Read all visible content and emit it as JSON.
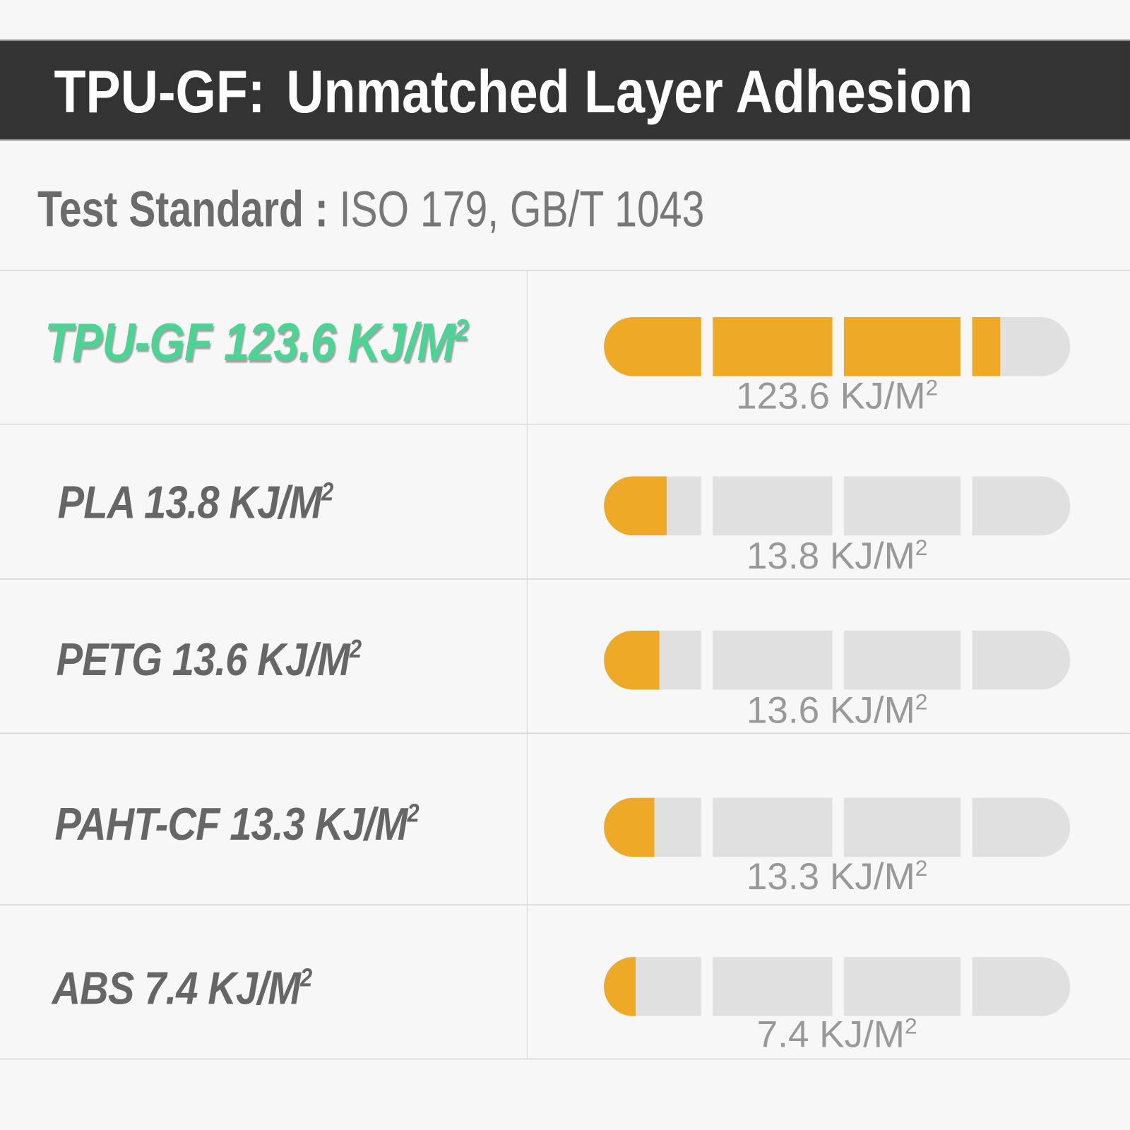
{
  "header": {
    "title_prefix": "TPU-GF:",
    "title_main": "Unmatched Layer Adhesion"
  },
  "standard": {
    "label": "Test Standard :",
    "value": "ISO 179, GB/T 1043"
  },
  "colors": {
    "fill": "#eea927",
    "track": "#e0e0e0",
    "highlight": "#4cd494",
    "header_bg": "#333333"
  },
  "chart_data": {
    "type": "bar",
    "orientation": "horizontal",
    "unit": "KJ/M²",
    "categories": [
      "TPU-GF",
      "PLA",
      "PETG",
      "PAHT-CF",
      "ABS"
    ],
    "values": [
      123.6,
      13.8,
      13.6,
      13.3,
      7.4
    ],
    "bar_fill_fraction": [
      0.85,
      0.134,
      0.119,
      0.108,
      0.068
    ],
    "rows": [
      {
        "label": "TPU-GF 123.6 KJ/M",
        "value_label": "123.6 KJ/M",
        "highlight": true
      },
      {
        "label": "PLA 13.8 KJ/M",
        "value_label": "13.8 KJ/M",
        "highlight": false
      },
      {
        "label": "PETG 13.6 KJ/M",
        "value_label": "13.6 KJ/M",
        "highlight": false
      },
      {
        "label": "PAHT-CF 13.3 KJ/M",
        "value_label": "13.3 KJ/M",
        "highlight": false
      },
      {
        "label": "ABS 7.4 KJ/M",
        "value_label": "7.4 KJ/M",
        "highlight": false
      }
    ],
    "superscript": "2"
  }
}
